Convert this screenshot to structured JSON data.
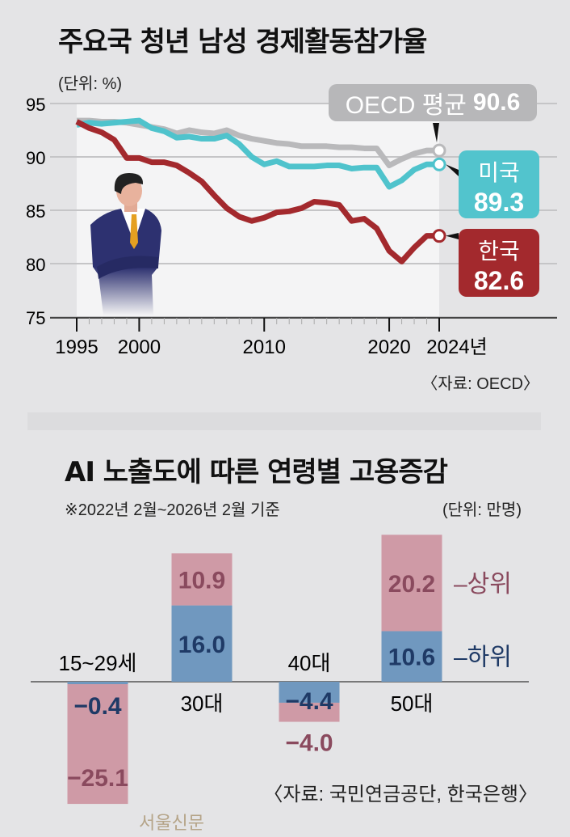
{
  "top": {
    "title": "주요국 청년 남성 경제활동참가율",
    "unit": "(단위: %)",
    "source": "〈자료: OECD〉"
  },
  "bottom": {
    "title": "AI 노출도에 따른 연령별 고용증감",
    "note": "※2022년 2월~2026년 2월 기준",
    "unit": "(단위: 만명)",
    "source": "〈자료: 국민연금공단, 한국은행〉",
    "watermark": "서울신문"
  },
  "chart_data": [
    {
      "type": "line",
      "title": "주요국 청년 남성 경제활동참가율",
      "ylabel": "(단위: %)",
      "ylim": [
        75,
        95
      ],
      "yticks": [
        "95",
        "90",
        "85",
        "80",
        "75"
      ],
      "xticks": [
        "1995",
        "2000",
        "2010",
        "2020",
        "2024년"
      ],
      "x": [
        1995,
        1996,
        1997,
        1998,
        1999,
        2000,
        2001,
        2002,
        2003,
        2004,
        2005,
        2006,
        2007,
        2008,
        2009,
        2010,
        2011,
        2012,
        2013,
        2014,
        2015,
        2016,
        2017,
        2018,
        2019,
        2020,
        2021,
        2022,
        2023,
        2024
      ],
      "series": [
        {
          "name": "OECD 평균",
          "label": "OECD 평균",
          "end_value": "90.6",
          "color": "#b9b9bb",
          "values": [
            93.4,
            93.4,
            93.3,
            93.3,
            93.2,
            93.0,
            92.8,
            92.6,
            92.2,
            92.5,
            92.3,
            92.2,
            92.5,
            92.0,
            91.7,
            91.5,
            91.3,
            91.2,
            91.0,
            91.0,
            91.0,
            90.9,
            90.9,
            90.8,
            90.8,
            89.2,
            89.8,
            90.3,
            90.6,
            90.6
          ]
        },
        {
          "name": "미국",
          "label": "미국",
          "end_value": "89.3",
          "color": "#4fc3cc",
          "values": [
            93.0,
            93.2,
            93.1,
            93.2,
            93.3,
            93.4,
            92.7,
            92.4,
            91.8,
            91.9,
            91.7,
            91.7,
            92.0,
            91.2,
            90.0,
            89.3,
            89.6,
            89.1,
            89.1,
            89.1,
            89.2,
            89.2,
            88.9,
            89.0,
            89.0,
            87.2,
            87.8,
            88.8,
            89.3,
            89.3
          ]
        },
        {
          "name": "한국",
          "label": "한국",
          "end_value": "82.6",
          "color": "#a3292d",
          "values": [
            93.3,
            92.7,
            92.3,
            91.6,
            89.9,
            89.9,
            89.5,
            89.5,
            89.2,
            88.5,
            87.7,
            86.4,
            85.2,
            84.4,
            84.0,
            84.3,
            84.8,
            84.9,
            85.2,
            85.8,
            85.7,
            85.5,
            84.0,
            84.2,
            83.3,
            81.2,
            80.2,
            81.5,
            82.6,
            82.6
          ]
        }
      ]
    },
    {
      "type": "bar",
      "title": "AI 노출도에 따른 연령별 고용증감",
      "ylabel": "(단위: 만명)",
      "categories": [
        "15~29세",
        "30대",
        "40대",
        "50대"
      ],
      "series": [
        {
          "name": "하위",
          "label": "하위",
          "color": "#7098bf",
          "text_color": "#1f3a66",
          "values": [
            -0.4,
            16.0,
            -4.4,
            10.6
          ],
          "labels": [
            "−0.4",
            "16.0",
            "−4.4",
            "10.6"
          ]
        },
        {
          "name": "상위",
          "label": "상위",
          "color": "#cf9aa6",
          "text_color": "#8a4a5e",
          "values": [
            -25.1,
            10.9,
            -4.0,
            20.2
          ],
          "labels": [
            "−25.1",
            "10.9",
            "−4.0",
            "20.2"
          ]
        }
      ]
    }
  ]
}
